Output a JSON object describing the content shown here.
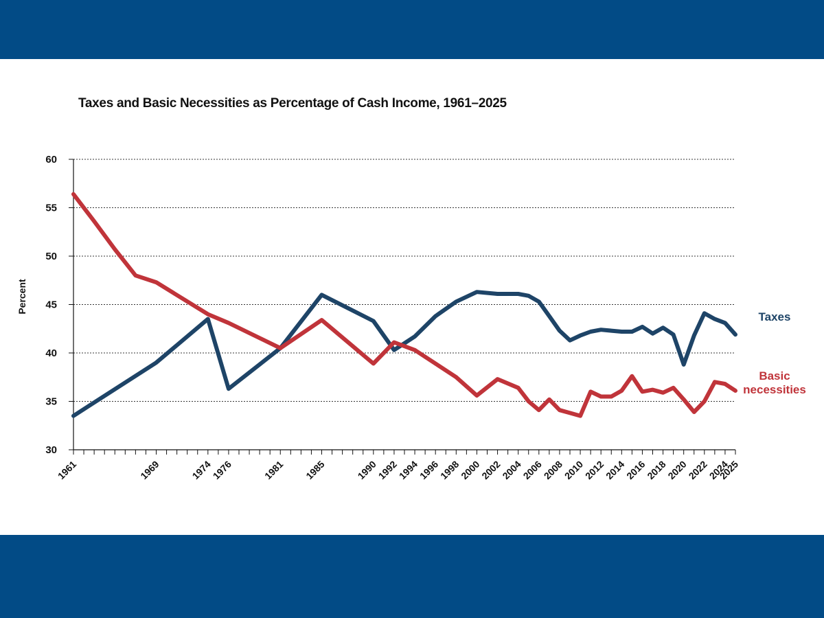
{
  "colors": {
    "band": "#024b86",
    "taxes": "#1e4467",
    "basic_necessities": "#c0343a",
    "axis": "#111111",
    "grid": "#333333"
  },
  "chart_data": {
    "type": "line",
    "title": "Taxes and Basic Necessities as Percentage of Cash Income, 1961–2025",
    "xlabel": "",
    "ylabel": "Percent",
    "xlim": [
      1961,
      2025
    ],
    "ylim": [
      30,
      60
    ],
    "yticks": [
      30,
      35,
      40,
      45,
      50,
      55,
      60
    ],
    "xtick_labels": [
      "1961",
      "1969",
      "1974",
      "1976",
      "1981",
      "1985",
      "1990",
      "1992",
      "1994",
      "1996",
      "1998",
      "2000",
      "2002",
      "2004",
      "2006",
      "2008",
      "2010",
      "2012",
      "2014",
      "2016",
      "2018",
      "2020",
      "2022",
      "2024",
      "2025"
    ],
    "grid": true,
    "grid_style": "dotted horizontal",
    "legend": "inline labels at right end of lines",
    "series": [
      {
        "name": "Taxes",
        "color": "#1e4467",
        "label_lines": [
          "Taxes"
        ],
        "x": [
          1961,
          1969,
          1974,
          1976,
          1981,
          1985,
          1990,
          1992,
          1994,
          1996,
          1998,
          2000,
          2002,
          2004,
          2005,
          2006,
          2007,
          2008,
          2009,
          2010,
          2011,
          2012,
          2013,
          2014,
          2015,
          2016,
          2017,
          2018,
          2019,
          2020,
          2021,
          2022,
          2023,
          2024,
          2025
        ],
        "values": [
          33.5,
          39.0,
          43.5,
          36.3,
          40.5,
          46.0,
          43.3,
          40.3,
          41.7,
          43.8,
          45.3,
          46.3,
          46.1,
          46.1,
          45.9,
          45.3,
          43.8,
          42.3,
          41.3,
          41.8,
          42.2,
          42.4,
          42.3,
          42.2,
          42.2,
          42.7,
          42.0,
          42.6,
          41.9,
          38.8,
          41.8,
          44.1,
          43.5,
          43.1,
          41.9
        ]
      },
      {
        "name": "Basic necessities",
        "color": "#c0343a",
        "label_lines": [
          "Basic",
          "necessities"
        ],
        "x": [
          1961,
          1963,
          1965,
          1967,
          1969,
          1974,
          1976,
          1981,
          1985,
          1990,
          1992,
          1994,
          1996,
          1998,
          2000,
          2002,
          2004,
          2005,
          2006,
          2007,
          2008,
          2009,
          2010,
          2011,
          2012,
          2013,
          2014,
          2015,
          2016,
          2017,
          2018,
          2019,
          2020,
          2021,
          2022,
          2023,
          2024,
          2025
        ],
        "values": [
          56.4,
          53.6,
          50.7,
          48.0,
          47.3,
          44.0,
          43.1,
          40.5,
          43.4,
          38.9,
          41.1,
          40.3,
          38.9,
          37.5,
          35.6,
          37.3,
          36.4,
          35.0,
          34.1,
          35.2,
          34.1,
          33.8,
          33.5,
          36.0,
          35.5,
          35.5,
          36.1,
          37.6,
          36.0,
          36.2,
          35.9,
          36.4,
          35.2,
          33.9,
          35.0,
          37.0,
          36.8,
          36.1
        ]
      }
    ]
  }
}
